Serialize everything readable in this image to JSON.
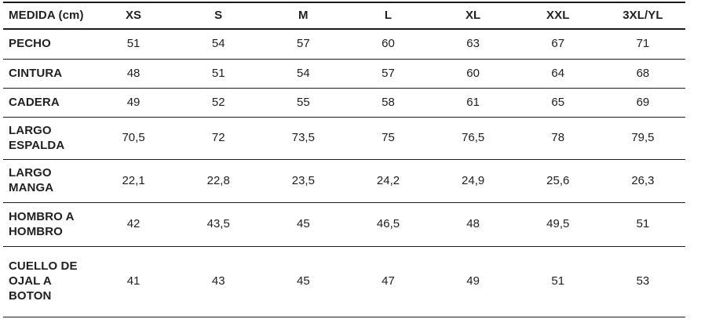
{
  "table": {
    "title": "size-chart",
    "unit_note": "cm",
    "colors": {
      "text": "#212121",
      "border": "#1c1c1c",
      "background": "#ffffff"
    },
    "header": {
      "label": "MEDIDA (cm)",
      "sizes": [
        "XS",
        "S",
        "M",
        "L",
        "XL",
        "XXL",
        "3XL/YL"
      ]
    },
    "rows": [
      {
        "label": "PECHO",
        "values": [
          "51",
          "54",
          "57",
          "60",
          "63",
          "67",
          "71"
        ]
      },
      {
        "label": "CINTURA",
        "values": [
          "48",
          "51",
          "54",
          "57",
          "60",
          "64",
          "68"
        ]
      },
      {
        "label": "CADERA",
        "values": [
          "49",
          "52",
          "55",
          "58",
          "61",
          "65",
          "69"
        ]
      },
      {
        "label": "LARGO ESPALDA",
        "values": [
          "70,5",
          "72",
          "73,5",
          "75",
          "76,5",
          "78",
          "79,5"
        ]
      },
      {
        "label": "LARGO MANGA",
        "values": [
          "22,1",
          "22,8",
          "23,5",
          "24,2",
          "24,9",
          "25,6",
          "26,3"
        ]
      },
      {
        "label": "HOMBRO A HOMBRO",
        "values": [
          "42",
          "43,5",
          "45",
          "46,5",
          "48",
          "49,5",
          "51"
        ]
      },
      {
        "label": "CUELLO DE OJAL A BOTON",
        "values": [
          "41",
          "43",
          "45",
          "47",
          "49",
          "51",
          "53"
        ]
      }
    ]
  }
}
